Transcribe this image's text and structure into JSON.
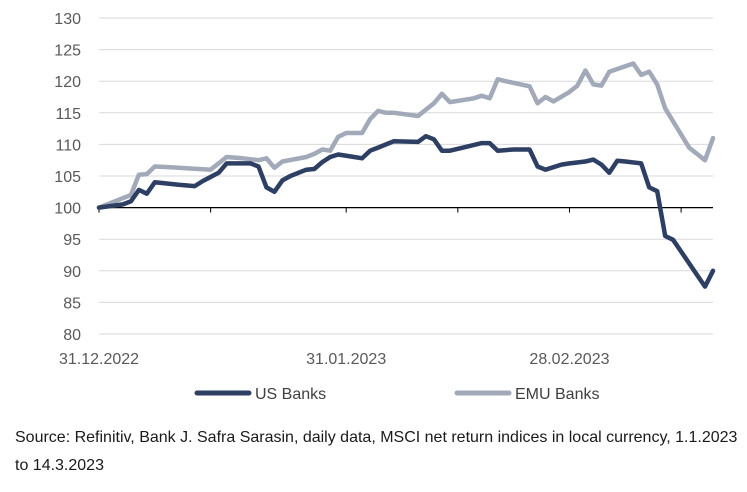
{
  "chart_data": {
    "type": "line",
    "ylim": [
      80,
      130
    ],
    "yticks": [
      80,
      85,
      90,
      95,
      100,
      105,
      110,
      115,
      120,
      125,
      130
    ],
    "x_range": [
      "2022-12-31",
      "2023-03-14"
    ],
    "xtick_labels": [
      {
        "date": "2022-12-31",
        "label": "31.12.2022"
      },
      {
        "date": "2023-01-31",
        "label": "31.01.2023"
      },
      {
        "date": "2023-02-28",
        "label": "28.02.2023"
      }
    ],
    "baseline": 100,
    "grid": true,
    "legend_position": "bottom",
    "series": [
      {
        "name": "US Banks",
        "color": "#2e3f64",
        "points": [
          [
            "2022-12-31",
            100.0
          ],
          [
            "2023-01-03",
            100.5
          ],
          [
            "2023-01-04",
            101.0
          ],
          [
            "2023-01-05",
            102.8
          ],
          [
            "2023-01-06",
            102.2
          ],
          [
            "2023-01-07",
            104.0
          ],
          [
            "2023-01-10",
            103.6
          ],
          [
            "2023-01-12",
            103.4
          ],
          [
            "2023-01-13",
            104.2
          ],
          [
            "2023-01-15",
            105.5
          ],
          [
            "2023-01-16",
            107.0
          ],
          [
            "2023-01-17",
            107.0
          ],
          [
            "2023-01-19",
            107.0
          ],
          [
            "2023-01-20",
            106.5
          ],
          [
            "2023-01-21",
            103.2
          ],
          [
            "2023-01-22",
            102.5
          ],
          [
            "2023-01-23",
            104.3
          ],
          [
            "2023-01-24",
            105.0
          ],
          [
            "2023-01-26",
            106.0
          ],
          [
            "2023-01-27",
            106.1
          ],
          [
            "2023-01-28",
            107.2
          ],
          [
            "2023-01-29",
            108.0
          ],
          [
            "2023-01-30",
            108.4
          ],
          [
            "2023-02-01",
            108.0
          ],
          [
            "2023-02-02",
            107.8
          ],
          [
            "2023-02-03",
            109.0
          ],
          [
            "2023-02-04",
            109.5
          ],
          [
            "2023-02-05",
            110.0
          ],
          [
            "2023-02-06",
            110.5
          ],
          [
            "2023-02-09",
            110.4
          ],
          [
            "2023-02-10",
            111.3
          ],
          [
            "2023-02-11",
            110.8
          ],
          [
            "2023-02-12",
            109.0
          ],
          [
            "2023-02-13",
            109.0
          ],
          [
            "2023-02-15",
            109.6
          ],
          [
            "2023-02-17",
            110.2
          ],
          [
            "2023-02-18",
            110.2
          ],
          [
            "2023-02-19",
            109.0
          ],
          [
            "2023-02-21",
            109.2
          ],
          [
            "2023-02-23",
            109.2
          ],
          [
            "2023-02-24",
            106.5
          ],
          [
            "2023-02-25",
            106.0
          ],
          [
            "2023-02-27",
            106.8
          ],
          [
            "2023-02-28",
            107.0
          ],
          [
            "2023-03-02",
            107.3
          ],
          [
            "2023-03-03",
            107.6
          ],
          [
            "2023-03-04",
            106.8
          ],
          [
            "2023-03-05",
            105.5
          ],
          [
            "2023-03-06",
            107.4
          ],
          [
            "2023-03-07",
            107.3
          ],
          [
            "2023-03-09",
            107.0
          ],
          [
            "2023-03-10",
            103.2
          ],
          [
            "2023-03-11",
            102.6
          ],
          [
            "2023-03-12",
            95.5
          ],
          [
            "2023-03-13",
            94.9
          ],
          [
            "2023-03-17",
            87.5
          ],
          [
            "2023-03-18",
            90.0
          ]
        ]
      },
      {
        "name": "EMU Banks",
        "color": "#a2a9b8",
        "points": [
          [
            "2022-12-31",
            100.0
          ],
          [
            "2023-01-02",
            101.0
          ],
          [
            "2023-01-04",
            102.0
          ],
          [
            "2023-01-05",
            105.2
          ],
          [
            "2023-01-06",
            105.3
          ],
          [
            "2023-01-07",
            106.5
          ],
          [
            "2023-01-09",
            106.4
          ],
          [
            "2023-01-14",
            106.0
          ],
          [
            "2023-01-15",
            107.0
          ],
          [
            "2023-01-16",
            108.0
          ],
          [
            "2023-01-18",
            107.8
          ],
          [
            "2023-01-20",
            107.5
          ],
          [
            "2023-01-21",
            107.8
          ],
          [
            "2023-01-22",
            106.3
          ],
          [
            "2023-01-23",
            107.3
          ],
          [
            "2023-01-26",
            108.0
          ],
          [
            "2023-01-27",
            108.5
          ],
          [
            "2023-01-28",
            109.2
          ],
          [
            "2023-01-29",
            109.0
          ],
          [
            "2023-01-30",
            111.2
          ],
          [
            "2023-01-31",
            111.8
          ],
          [
            "2023-02-02",
            111.8
          ],
          [
            "2023-02-03",
            114.0
          ],
          [
            "2023-02-04",
            115.3
          ],
          [
            "2023-02-05",
            115.0
          ],
          [
            "2023-02-06",
            115.0
          ],
          [
            "2023-02-09",
            114.5
          ],
          [
            "2023-02-10",
            115.5
          ],
          [
            "2023-02-11",
            116.5
          ],
          [
            "2023-02-12",
            118.0
          ],
          [
            "2023-02-13",
            116.7
          ],
          [
            "2023-02-16",
            117.3
          ],
          [
            "2023-02-17",
            117.7
          ],
          [
            "2023-02-18",
            117.3
          ],
          [
            "2023-02-19",
            120.3
          ],
          [
            "2023-02-20",
            120.0
          ],
          [
            "2023-02-23",
            119.2
          ],
          [
            "2023-02-24",
            116.5
          ],
          [
            "2023-02-25",
            117.5
          ],
          [
            "2023-02-26",
            116.8
          ],
          [
            "2023-02-28",
            118.3
          ],
          [
            "2023-03-01",
            119.3
          ],
          [
            "2023-03-02",
            121.7
          ],
          [
            "2023-03-03",
            119.5
          ],
          [
            "2023-03-04",
            119.3
          ],
          [
            "2023-03-05",
            121.5
          ],
          [
            "2023-03-08",
            122.8
          ],
          [
            "2023-03-09",
            121.0
          ],
          [
            "2023-03-10",
            121.5
          ],
          [
            "2023-03-11",
            119.5
          ],
          [
            "2023-03-12",
            115.7
          ],
          [
            "2023-03-15",
            109.5
          ],
          [
            "2023-03-17",
            107.5
          ],
          [
            "2023-03-18",
            111.0
          ]
        ]
      }
    ]
  },
  "source_note": "Source: Refinitiv, Bank J. Safra Sarasin, daily data, MSCI net return indices in local currency, 1.1.2023 to 14.3.2023"
}
